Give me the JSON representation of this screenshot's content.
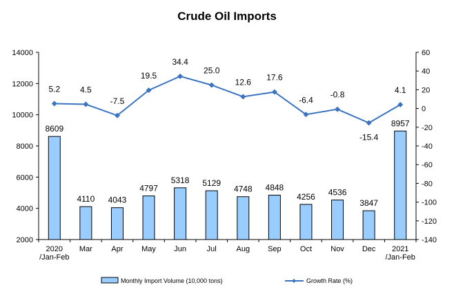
{
  "chart_data": {
    "type": "bar",
    "title": "Crude Oil Imports",
    "categories": [
      [
        "2020",
        "/Jan-Feb"
      ],
      [
        "Mar"
      ],
      [
        "Apr"
      ],
      [
        "May"
      ],
      [
        "Jun"
      ],
      [
        "Jul"
      ],
      [
        "Aug"
      ],
      [
        "Sep"
      ],
      [
        "Oct"
      ],
      [
        "Nov"
      ],
      [
        "Dec"
      ],
      [
        "2021",
        "/Jan-Feb"
      ]
    ],
    "series": [
      {
        "name": "Monthly Import Volume (10,000 tons)",
        "type": "bar",
        "axis": "left",
        "color": "#99ccff",
        "values": [
          8609,
          4110,
          4043,
          4797,
          5318,
          5129,
          4748,
          4848,
          4256,
          4536,
          3847,
          8957
        ],
        "labels": [
          "8609",
          "4110",
          "4043",
          "4797",
          "5318",
          "5129",
          "4748",
          "4848",
          "4256",
          "4536",
          "3847",
          "8957"
        ]
      },
      {
        "name": "Growth Rate (%)",
        "type": "line",
        "axis": "right",
        "color": "#3a73c0",
        "values": [
          5.2,
          4.5,
          -7.5,
          19.5,
          34.4,
          25.0,
          12.6,
          17.6,
          -6.4,
          -0.8,
          -15.4,
          4.1
        ],
        "labels": [
          "5.2",
          "4.5",
          "-7.5",
          "19.5",
          "34.4",
          "25.0",
          "12.6",
          "17.6",
          "-6.4",
          "-0.8",
          "-15.4",
          "4.1"
        ]
      }
    ],
    "y_left": {
      "min": 2000,
      "max": 14000,
      "ticks": [
        2000,
        4000,
        6000,
        8000,
        10000,
        12000,
        14000
      ]
    },
    "y_right": {
      "min": -140,
      "max": 60,
      "ticks": [
        60,
        40,
        20,
        0,
        -20,
        -40,
        -60,
        -80,
        -100,
        -120,
        -140
      ]
    },
    "grid": false,
    "legend_position": "bottom"
  }
}
